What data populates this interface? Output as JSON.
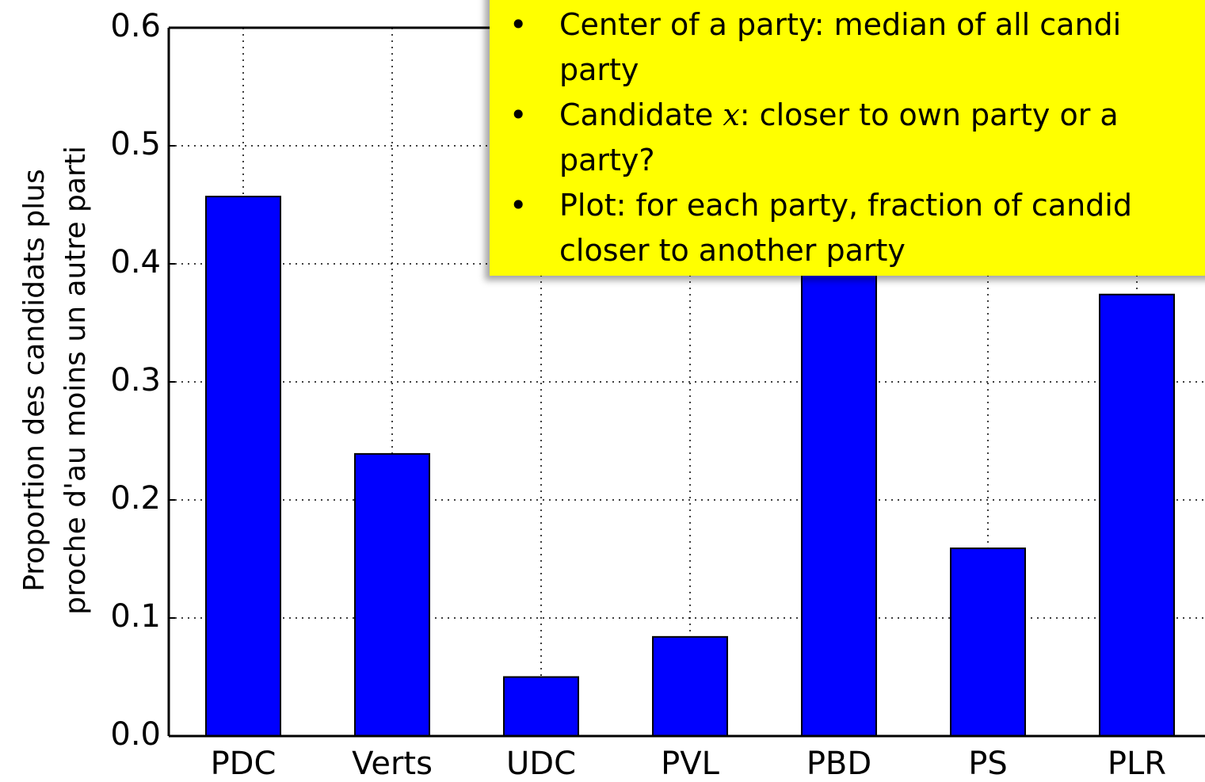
{
  "chart_data": {
    "type": "bar",
    "ylabel": [
      "Proportion des candidats plus",
      "proche d'au moins un autre parti"
    ],
    "categories": [
      "PDC",
      "Verts",
      "UDC",
      "PVL",
      "PBD",
      "PS",
      "PLR"
    ],
    "values": [
      0.457,
      0.239,
      0.05,
      0.084,
      0.42,
      0.159,
      0.374
    ],
    "color": "#0000ff",
    "ylim": [
      0,
      0.6
    ],
    "yticks": [
      {
        "value": 0,
        "label": "0.0"
      },
      0.1,
      0.2,
      0.3,
      0.4,
      0.5,
      0.6
    ],
    "grid": true
  },
  "note": {
    "bullets": [
      {
        "lines": [
          "Center of a party: median of all candi",
          "party"
        ]
      },
      {
        "parts": [
          "Candidate ",
          "x",
          ":  closer to own party or a"
        ],
        "lines": [
          "party?"
        ]
      },
      {
        "lines": [
          "Plot: for each party, fraction of candid",
          "closer to another party"
        ]
      }
    ]
  }
}
